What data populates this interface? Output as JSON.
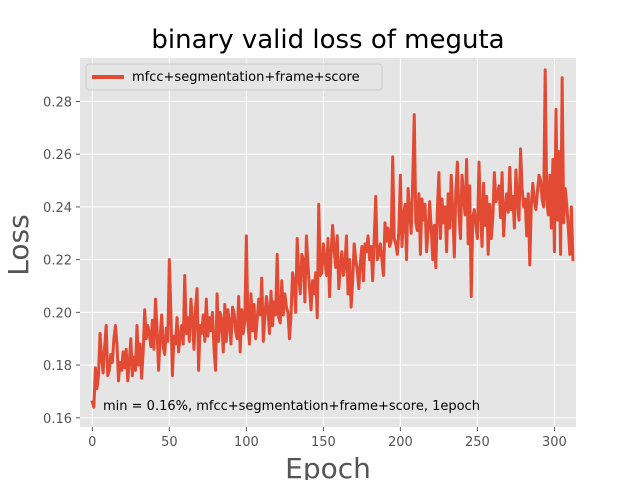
{
  "chart_data": {
    "type": "line",
    "title": "binary valid loss of meguta",
    "xlabel": "Epoch",
    "ylabel": "Loss",
    "xlim": [
      -8,
      314
    ],
    "ylim": [
      0.1565,
      0.2965
    ],
    "xticks": [
      0,
      50,
      100,
      150,
      200,
      250,
      300
    ],
    "yticks": [
      0.16,
      0.18,
      0.2,
      0.22,
      0.24,
      0.26,
      0.28
    ],
    "ytick_labels": [
      "0.16",
      "0.18",
      "0.20",
      "0.22",
      "0.24",
      "0.26",
      "0.28"
    ],
    "grid": true,
    "legend_position": "top-left",
    "annotation": "min  = 0.16%, mfcc+segmentation+frame+score, 1epoch",
    "series": [
      {
        "name": "mfcc+segmentation+frame+score",
        "color": "#e24a33",
        "x_start": 0,
        "x_step": 1,
        "values": [
          0.166,
          0.164,
          0.179,
          0.171,
          0.176,
          0.192,
          0.183,
          0.177,
          0.187,
          0.195,
          0.176,
          0.178,
          0.184,
          0.181,
          0.19,
          0.195,
          0.188,
          0.174,
          0.181,
          0.178,
          0.185,
          0.179,
          0.186,
          0.174,
          0.181,
          0.19,
          0.176,
          0.183,
          0.178,
          0.195,
          0.18,
          0.188,
          0.175,
          0.185,
          0.201,
          0.19,
          0.195,
          0.192,
          0.187,
          0.197,
          0.186,
          0.205,
          0.194,
          0.178,
          0.19,
          0.199,
          0.187,
          0.184,
          0.194,
          0.189,
          0.22,
          0.2,
          0.176,
          0.191,
          0.188,
          0.198,
          0.185,
          0.191,
          0.195,
          0.188,
          0.214,
          0.192,
          0.198,
          0.189,
          0.205,
          0.197,
          0.186,
          0.202,
          0.209,
          0.178,
          0.195,
          0.192,
          0.199,
          0.189,
          0.205,
          0.191,
          0.198,
          0.193,
          0.2,
          0.186,
          0.178,
          0.207,
          0.189,
          0.2,
          0.197,
          0.185,
          0.203,
          0.189,
          0.201,
          0.196,
          0.188,
          0.202,
          0.2,
          0.193,
          0.19,
          0.206,
          0.185,
          0.201,
          0.192,
          0.197,
          0.229,
          0.196,
          0.188,
          0.207,
          0.193,
          0.203,
          0.19,
          0.197,
          0.205,
          0.199,
          0.213,
          0.189,
          0.198,
          0.206,
          0.201,
          0.192,
          0.208,
          0.195,
          0.204,
          0.199,
          0.222,
          0.198,
          0.196,
          0.212,
          0.199,
          0.207,
          0.202,
          0.2,
          0.19,
          0.199,
          0.215,
          0.211,
          0.2,
          0.228,
          0.214,
          0.207,
          0.222,
          0.22,
          0.204,
          0.229,
          0.218,
          0.209,
          0.201,
          0.212,
          0.207,
          0.215,
          0.198,
          0.241,
          0.214,
          0.215,
          0.226,
          0.22,
          0.214,
          0.228,
          0.206,
          0.222,
          0.233,
          0.224,
          0.217,
          0.229,
          0.209,
          0.217,
          0.223,
          0.214,
          0.218,
          0.229,
          0.207,
          0.22,
          0.202,
          0.212,
          0.226,
          0.22,
          0.216,
          0.209,
          0.219,
          0.225,
          0.212,
          0.226,
          0.223,
          0.229,
          0.22,
          0.225,
          0.212,
          0.228,
          0.244,
          0.22,
          0.222,
          0.226,
          0.22,
          0.214,
          0.234,
          0.227,
          0.232,
          0.225,
          0.227,
          0.259,
          0.228,
          0.226,
          0.222,
          0.231,
          0.252,
          0.225,
          0.236,
          0.241,
          0.22,
          0.247,
          0.238,
          0.23,
          0.25,
          0.275,
          0.234,
          0.231,
          0.245,
          0.222,
          0.243,
          0.235,
          0.241,
          0.223,
          0.231,
          0.242,
          0.232,
          0.22,
          0.233,
          0.217,
          0.239,
          0.253,
          0.228,
          0.243,
          0.234,
          0.24,
          0.223,
          0.245,
          0.232,
          0.252,
          0.238,
          0.221,
          0.246,
          0.257,
          0.238,
          0.228,
          0.252,
          0.244,
          0.237,
          0.258,
          0.226,
          0.248,
          0.206,
          0.236,
          0.239,
          0.233,
          0.228,
          0.257,
          0.238,
          0.225,
          0.249,
          0.233,
          0.244,
          0.222,
          0.241,
          0.228,
          0.236,
          0.253,
          0.242,
          0.244,
          0.248,
          0.236,
          0.253,
          0.229,
          0.24,
          0.245,
          0.238,
          0.255,
          0.239,
          0.244,
          0.232,
          0.254,
          0.242,
          0.235,
          0.262,
          0.247,
          0.24,
          0.243,
          0.229,
          0.245,
          0.218,
          0.241,
          0.249,
          0.242,
          0.239,
          0.246,
          0.252,
          0.25,
          0.243,
          0.24,
          0.292,
          0.243,
          0.237,
          0.252,
          0.232,
          0.258,
          0.223,
          0.277,
          0.235,
          0.261,
          0.222,
          0.289,
          0.234,
          0.247,
          0.241,
          0.232,
          0.222,
          0.24,
          0.22
        ]
      }
    ]
  }
}
